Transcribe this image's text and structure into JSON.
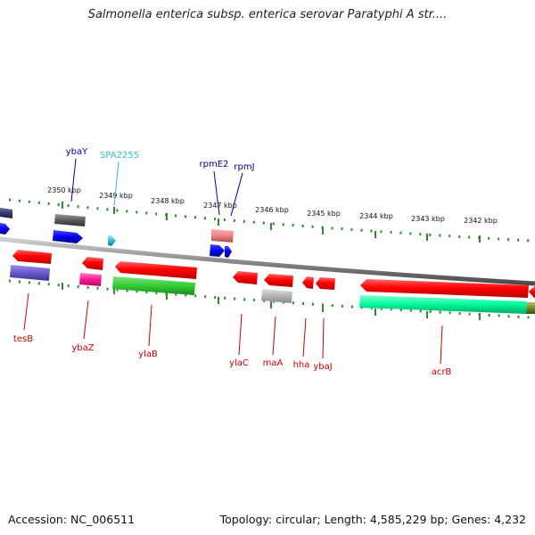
{
  "title": "Salmonella enterica subsp. enterica serovar Paratyphi A str....",
  "footer": {
    "accession": "Accession: NC_006511",
    "summary": "Topology: circular; Length: 4,585,229 bp; Genes: 4,232"
  },
  "colors": {
    "backbone": "#8a8a8a",
    "forward_ticks": "#2e8b2e",
    "reverse_label": "#cc0000",
    "forward_label": "#00008b",
    "rna_label": "#33bbdd"
  },
  "scale_labels": [
    "2350 kbp",
    "2349 kbp",
    "2348 kbp",
    "2347 kbp",
    "2346 kbp",
    "2345 kbp",
    "2344 kbp",
    "2343 kbp",
    "2342 kbp"
  ],
  "upper_genes": [
    {
      "name": "ybaY",
      "color": "#00008b"
    },
    {
      "name": "SPA2255",
      "color": "#33bbdd"
    },
    {
      "name": "rpmE2",
      "color": "#00008b"
    },
    {
      "name": "rpmJ",
      "color": "#00008b"
    }
  ],
  "lower_genes": [
    {
      "name": "tesB",
      "color": "#cc0000"
    },
    {
      "name": "ybaZ",
      "color": "#cc0000"
    },
    {
      "name": "ylaB",
      "color": "#cc0000"
    },
    {
      "name": "ylaC",
      "color": "#cc0000"
    },
    {
      "name": "maA",
      "color": "#cc0000"
    },
    {
      "name": "hha",
      "color": "#cc0000"
    },
    {
      "name": "ybaJ",
      "color": "#cc0000"
    },
    {
      "name": "acrB",
      "color": "#cc0000"
    }
  ]
}
